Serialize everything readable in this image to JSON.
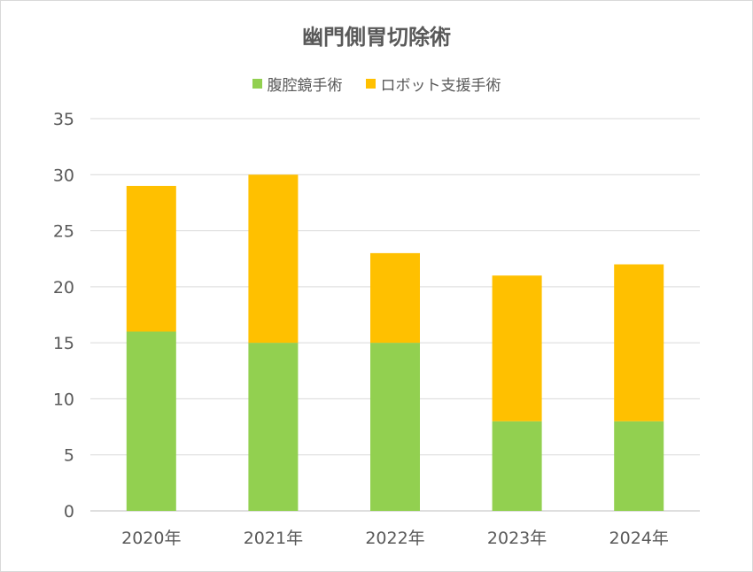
{
  "chart_data": {
    "type": "bar",
    "stacked": true,
    "title": "幽門側胃切除術",
    "categories": [
      "2020年",
      "2021年",
      "2022年",
      "2023年",
      "2024年"
    ],
    "series": [
      {
        "name": "腹腔鏡手術",
        "color": "#92d050",
        "values": [
          16,
          15,
          15,
          8,
          8
        ]
      },
      {
        "name": "ロボット支援手術",
        "color": "#ffc000",
        "values": [
          13,
          15,
          8,
          13,
          14
        ]
      }
    ],
    "ylim": [
      0,
      35
    ],
    "yticks": [
      0,
      5,
      10,
      15,
      20,
      25,
      30,
      35
    ],
    "grid": true,
    "legend_position": "top"
  }
}
